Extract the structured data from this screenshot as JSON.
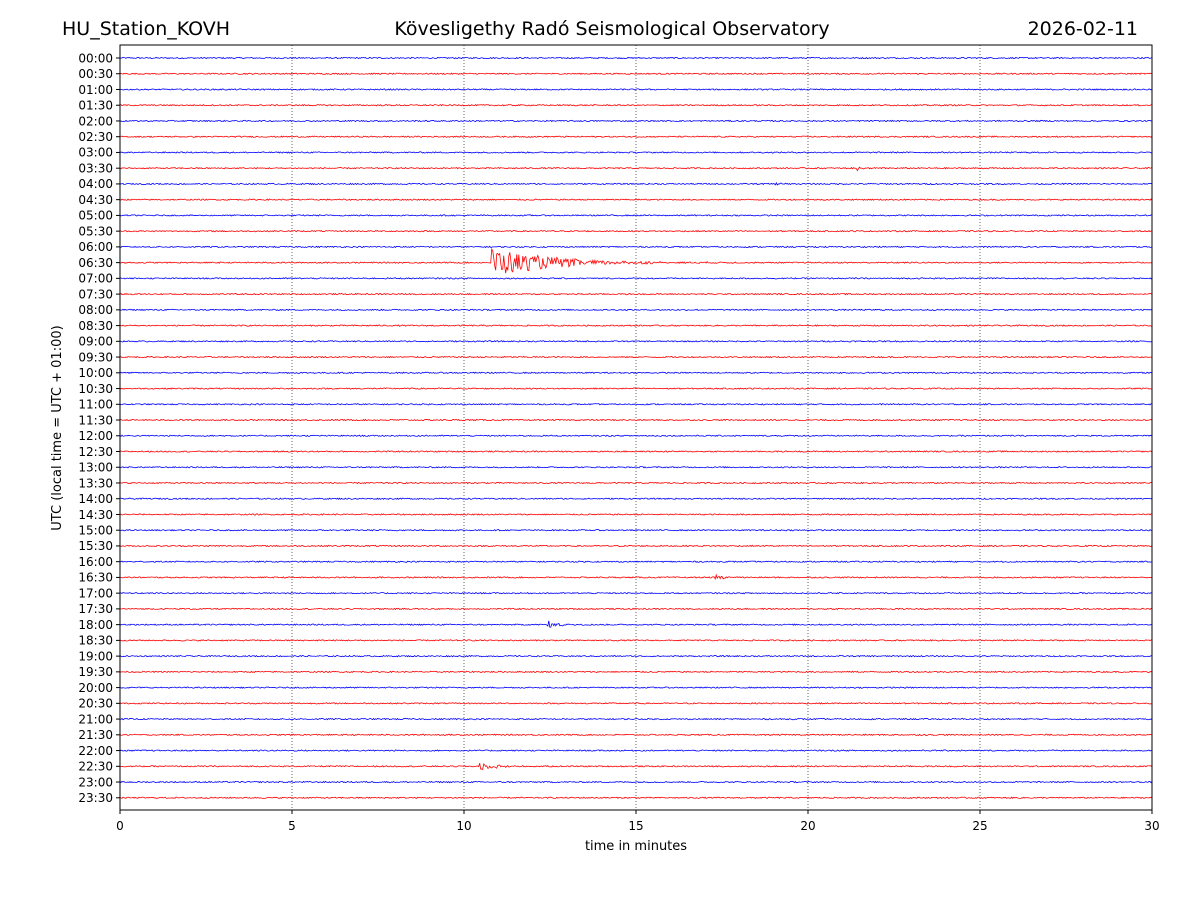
{
  "header": {
    "station": "HU_Station_KOVH",
    "observatory": "Kövesligethy Radó Seismological Observatory",
    "date": "2026-02-11"
  },
  "chart_data": {
    "type": "line",
    "title": "Kövesligethy Radó Seismological Observatory",
    "xlabel": "time in minutes",
    "ylabel": "UTC (local time = UTC + 01:00)",
    "xlim": [
      0,
      30
    ],
    "x_ticks": [
      0,
      5,
      10,
      15,
      20,
      25,
      30
    ],
    "x_tick_labels": [
      "0",
      "5",
      "10",
      "15",
      "20",
      "25",
      "30"
    ],
    "grid": "vertical dotted at 5-minute intervals",
    "series_colors": [
      "#0000ff",
      "#ff0000"
    ],
    "rows": [
      "00:00",
      "00:30",
      "01:00",
      "01:30",
      "02:00",
      "02:30",
      "03:00",
      "03:30",
      "04:00",
      "04:30",
      "05:00",
      "05:30",
      "06:00",
      "06:30",
      "07:00",
      "07:30",
      "08:00",
      "08:30",
      "09:00",
      "09:30",
      "10:00",
      "10:30",
      "11:00",
      "11:30",
      "12:00",
      "12:30",
      "13:00",
      "13:30",
      "14:00",
      "14:30",
      "15:00",
      "15:30",
      "16:00",
      "16:30",
      "17:00",
      "17:30",
      "18:00",
      "18:30",
      "19:00",
      "19:30",
      "20:00",
      "20:30",
      "21:00",
      "21:30",
      "22:00",
      "22:30",
      "23:00",
      "23:30"
    ],
    "events": [
      {
        "row": "03:30",
        "start_min": 21.4,
        "peak_amplitude": 0.4,
        "duration_min": 0.5
      },
      {
        "row": "04:00",
        "start_min": 19.0,
        "peak_amplitude": 0.3,
        "duration_min": 0.8
      },
      {
        "row": "06:30",
        "start_min": 10.8,
        "peak_amplitude": 1.9,
        "duration_min": 7.5
      },
      {
        "row": "16:30",
        "start_min": 17.3,
        "peak_amplitude": 0.4,
        "duration_min": 1.0
      },
      {
        "row": "18:00",
        "start_min": 12.4,
        "peak_amplitude": 0.5,
        "duration_min": 1.5
      },
      {
        "row": "22:30",
        "start_min": 10.4,
        "peak_amplitude": 0.6,
        "duration_min": 2.2
      }
    ]
  }
}
